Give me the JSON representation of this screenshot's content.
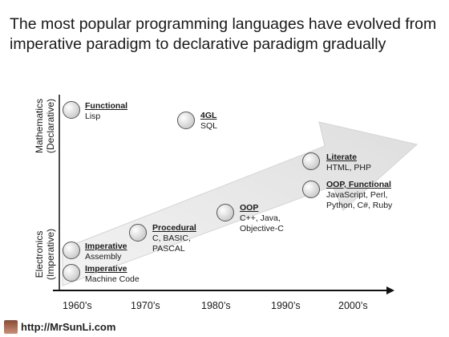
{
  "title": "The most popular programming languages have evolved from imperative paradigm to declarative paradigm gradually",
  "y_axis": {
    "top": {
      "line1": "Mathematics",
      "line2": "(Declarative)"
    },
    "bottom": {
      "line1": "Electronics",
      "line2": "(Imperative)"
    }
  },
  "x_axis": {
    "ticks": [
      "1960’s",
      "1970’s",
      "1980’s",
      "1990’s",
      "2000’s"
    ]
  },
  "nodes": [
    {
      "category": "Functional",
      "languages": [
        "Lisp"
      ]
    },
    {
      "category": "4GL",
      "languages": [
        "SQL"
      ]
    },
    {
      "category": "Literate",
      "languages": [
        "HTML, PHP"
      ]
    },
    {
      "category": "OOP, Functional",
      "languages": [
        "JavaScript, Perl,",
        "Python, C#, Ruby"
      ]
    },
    {
      "category": "OOP",
      "languages": [
        "C++, Java,",
        "Objective-C"
      ]
    },
    {
      "category": "Procedural",
      "languages": [
        "C, BASIC,",
        "PASCAL"
      ]
    },
    {
      "category": "Imperative",
      "languages": [
        "Assembly"
      ]
    },
    {
      "category": "Imperative",
      "languages": [
        "Machine Code"
      ]
    }
  ],
  "footer": {
    "url": "http://MrSunLi.com"
  },
  "colors": {
    "arrow": "#e8e8e8",
    "axis": "#111111",
    "node_fill": "#e0e0e0",
    "node_stroke": "#555555"
  }
}
